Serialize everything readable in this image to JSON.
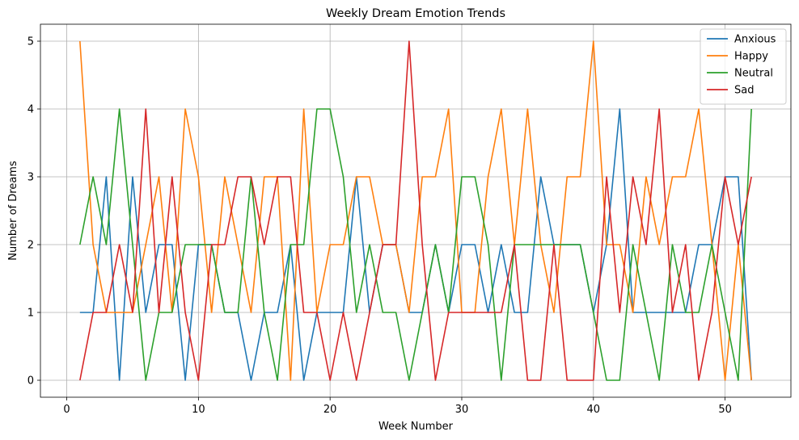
{
  "chart_data": {
    "type": "line",
    "title": "Weekly Dream Emotion Trends",
    "xlabel": "Week Number",
    "ylabel": "Number of Dreams",
    "xlim": [
      -2,
      55
    ],
    "ylim": [
      -0.25,
      5.25
    ],
    "xticks": [
      0,
      10,
      20,
      30,
      40,
      50
    ],
    "yticks": [
      0,
      1,
      2,
      3,
      4,
      5
    ],
    "grid": true,
    "legend_position": "top-right",
    "x": [
      1,
      2,
      3,
      4,
      5,
      6,
      7,
      8,
      9,
      10,
      11,
      12,
      13,
      14,
      15,
      16,
      17,
      18,
      19,
      20,
      21,
      22,
      23,
      24,
      25,
      26,
      27,
      28,
      29,
      30,
      31,
      32,
      33,
      34,
      35,
      36,
      37,
      38,
      39,
      40,
      41,
      42,
      43,
      44,
      45,
      46,
      47,
      48,
      49,
      50,
      51,
      52
    ],
    "series": [
      {
        "name": "Anxious",
        "color": "#1f77b4",
        "values": [
          1,
          1,
          3,
          0,
          3,
          1,
          2,
          2,
          0,
          2,
          2,
          1,
          1,
          0,
          1,
          1,
          2,
          0,
          1,
          1,
          1,
          3,
          1,
          2,
          2,
          1,
          1,
          2,
          1,
          2,
          2,
          1,
          2,
          1,
          1,
          3,
          2,
          2,
          2,
          1,
          2,
          4,
          1,
          1,
          1,
          1,
          1,
          2,
          2,
          3,
          3,
          0
        ]
      },
      {
        "name": "Happy",
        "color": "#ff7f0e",
        "values": [
          5,
          2,
          1,
          1,
          1,
          2,
          3,
          1,
          4,
          3,
          1,
          3,
          2,
          1,
          3,
          3,
          0,
          4,
          1,
          2,
          2,
          3,
          3,
          2,
          2,
          1,
          3,
          3,
          4,
          1,
          1,
          3,
          4,
          2,
          4,
          2,
          1,
          3,
          3,
          5,
          2,
          2,
          1,
          3,
          2,
          3,
          3,
          4,
          2,
          0,
          2,
          0
        ]
      },
      {
        "name": "Neutral",
        "color": "#2ca02c",
        "values": [
          2,
          3,
          2,
          4,
          2,
          0,
          1,
          1,
          2,
          2,
          2,
          1,
          1,
          3,
          1,
          0,
          2,
          2,
          4,
          4,
          3,
          1,
          2,
          1,
          1,
          0,
          1,
          2,
          1,
          3,
          3,
          2,
          0,
          2,
          2,
          2,
          2,
          2,
          2,
          1,
          0,
          0,
          2,
          1,
          0,
          2,
          1,
          1,
          2,
          1,
          0,
          4
        ]
      },
      {
        "name": "Sad",
        "color": "#d62728",
        "values": [
          0,
          1,
          1,
          2,
          1,
          4,
          1,
          3,
          1,
          0,
          2,
          2,
          3,
          3,
          2,
          3,
          3,
          1,
          1,
          0,
          1,
          0,
          1,
          2,
          2,
          5,
          2,
          0,
          1,
          1,
          1,
          1,
          1,
          2,
          0,
          0,
          2,
          0,
          0,
          0,
          3,
          1,
          3,
          2,
          4,
          1,
          2,
          0,
          1,
          3,
          2,
          3
        ]
      }
    ]
  }
}
